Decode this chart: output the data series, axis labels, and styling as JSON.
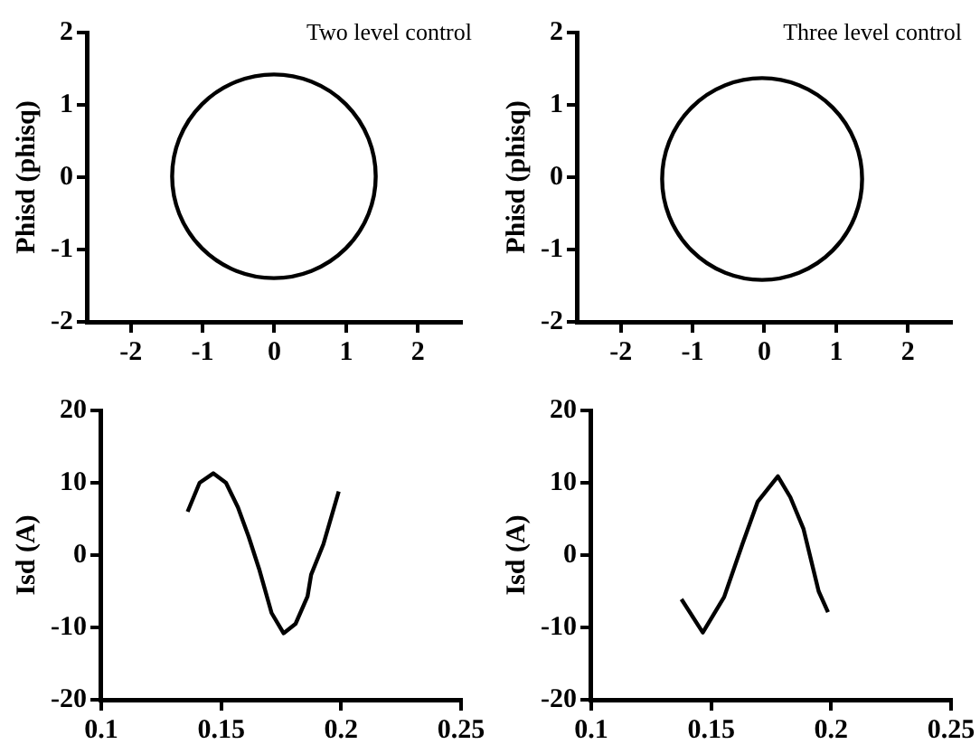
{
  "chart_data": [
    {
      "type": "line",
      "title": "Two level control",
      "ylabel": "Phisd (phisq)",
      "xlim": [
        -2.6,
        2.6
      ],
      "xticks": [
        -2,
        -1,
        0,
        1,
        2
      ],
      "ylim": [
        -2,
        2
      ],
      "yticks": [
        -2,
        -1,
        0,
        1,
        2
      ]
    },
    {
      "type": "line",
      "title": "Three level control",
      "ylabel": "Phisd (phisq)",
      "xlim": [
        -2.6,
        2.6
      ],
      "xticks": [
        -2,
        -1,
        0,
        1,
        2
      ],
      "ylim": [
        -2,
        2
      ],
      "yticks": [
        -2,
        -1,
        0,
        1,
        2
      ]
    },
    {
      "type": "line",
      "ylabel": "Isd (A)",
      "color": "#000000",
      "x": [
        0.136,
        0.141,
        0.1467,
        0.152,
        0.157,
        0.1615,
        0.1658,
        0.171,
        0.176,
        0.181,
        0.186,
        0.1875,
        0.1926,
        0.199
      ],
      "values": [
        6.0,
        10.0,
        11.3,
        10.0,
        6.6,
        2.5,
        -1.9,
        -8.0,
        -10.8,
        -9.5,
        -5.7,
        -2.7,
        1.5,
        8.8
      ],
      "xlim": [
        0.1,
        0.25
      ],
      "xticks": [
        0.1,
        0.15,
        0.2,
        0.25
      ],
      "ylim": [
        -20,
        20
      ],
      "yticks": [
        -20,
        -10,
        0,
        10,
        20
      ]
    },
    {
      "type": "line",
      "ylabel": "Isd (A)",
      "color": "#000000",
      "x": [
        0.1376,
        0.1465,
        0.1554,
        0.163,
        0.1694,
        0.1778,
        0.183,
        0.1885,
        0.1948,
        0.1987
      ],
      "values": [
        -6.1,
        -10.7,
        -5.8,
        1.5,
        7.4,
        10.9,
        8.0,
        3.6,
        -5.0,
        -7.9
      ],
      "xlim": [
        0.1,
        0.25
      ],
      "xticks": [
        0.1,
        0.15,
        0.2,
        0.25
      ],
      "ylim": [
        -20,
        20
      ],
      "yticks": [
        -20,
        -10,
        0,
        10,
        20
      ]
    }
  ]
}
